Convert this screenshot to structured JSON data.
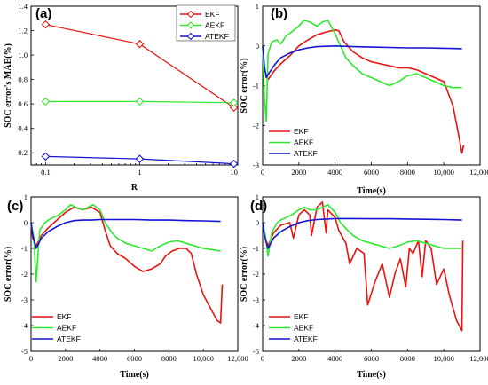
{
  "chart_data": [
    {
      "panel_label": "(a)",
      "type": "line",
      "xlabel": "R",
      "ylabel": "SOC error's MAE(%)",
      "xscale": "log",
      "xlim": [
        0.07,
        11
      ],
      "ylim": [
        0.1,
        1.4
      ],
      "xticks": [
        0.1,
        1,
        10
      ],
      "xtick_labels": [
        "0.1",
        "1",
        "10"
      ],
      "yticks": [
        0.2,
        0.4,
        0.6,
        0.8,
        1.0,
        1.2,
        1.4
      ],
      "ytick_labels": [
        "0.2",
        "0.4",
        "0.6",
        "0.8",
        "1.0",
        "1.2",
        "1.4"
      ],
      "legend_position": "top-right",
      "x": [
        0.1,
        1,
        10
      ],
      "series": [
        {
          "name": "EKF",
          "color": "#e8140f",
          "marker": "diamond",
          "values": [
            1.25,
            1.09,
            0.57
          ]
        },
        {
          "name": "AEKF",
          "color": "#2ee82e",
          "marker": "diamond",
          "values": [
            0.62,
            0.62,
            0.61
          ]
        },
        {
          "name": "ATEKF",
          "color": "#1414d2",
          "marker": "diamond",
          "values": [
            0.17,
            0.15,
            0.11
          ]
        }
      ]
    },
    {
      "panel_label": "(b)",
      "type": "line",
      "xlabel": "Time(s)",
      "ylabel": "SOC error(%)",
      "xlim": [
        0,
        12000
      ],
      "ylim": [
        -3,
        1
      ],
      "xticks": [
        0,
        2000,
        4000,
        6000,
        8000,
        10000,
        12000
      ],
      "xtick_labels": [
        "0",
        "2000",
        "4000",
        "6000",
        "8000",
        "10,000",
        "12,000"
      ],
      "yticks": [
        -3,
        -2,
        -1,
        0,
        1
      ],
      "ytick_labels": [
        "-3",
        "-2",
        "-1",
        "0",
        "1"
      ],
      "legend_position": "bottom-left",
      "series": [
        {
          "name": "EKF",
          "color": "#e8140f",
          "x": [
            0,
            100,
            300,
            600,
            1000,
            1500,
            2000,
            2500,
            3000,
            3500,
            4000,
            4200,
            4500,
            5000,
            5500,
            6000,
            6500,
            7000,
            7500,
            8000,
            8500,
            9000,
            9500,
            10000,
            10500,
            10800,
            11000,
            11100
          ],
          "values": [
            0,
            -0.6,
            -0.85,
            -0.65,
            -0.45,
            -0.25,
            0.0,
            0.15,
            0.28,
            0.35,
            0.4,
            0.38,
            0.1,
            -0.15,
            -0.3,
            -0.4,
            -0.45,
            -0.5,
            -0.55,
            -0.55,
            -0.6,
            -0.7,
            -0.8,
            -0.9,
            -1.5,
            -2.2,
            -2.7,
            -2.5
          ]
        },
        {
          "name": "AEKF",
          "color": "#2ee82e",
          "x": [
            0,
            100,
            200,
            300,
            500,
            800,
            1000,
            1300,
            1600,
            2000,
            2300,
            2600,
            3000,
            3300,
            3600,
            4000,
            4300,
            4600,
            5000,
            5500,
            6000,
            6500,
            7000,
            7500,
            8000,
            8500,
            9000,
            9500,
            10000,
            10500,
            11000
          ],
          "values": [
            0,
            -1.3,
            -1.9,
            -0.2,
            0.1,
            0.15,
            0.05,
            0.25,
            0.35,
            0.5,
            0.65,
            0.6,
            0.5,
            0.6,
            0.65,
            0.3,
            0.0,
            -0.3,
            -0.5,
            -0.7,
            -0.8,
            -0.9,
            -1.0,
            -0.9,
            -0.75,
            -0.7,
            -0.8,
            -0.9,
            -1.0,
            -1.05,
            -1.05
          ]
        },
        {
          "name": "ATEKF",
          "color": "#1414d2",
          "x": [
            0,
            100,
            200,
            400,
            700,
            1000,
            1500,
            2000,
            2500,
            3000,
            3500,
            4000,
            5000,
            6000,
            7000,
            8000,
            9000,
            10000,
            11000
          ],
          "values": [
            0,
            -0.5,
            -0.8,
            -0.65,
            -0.45,
            -0.3,
            -0.18,
            -0.1,
            -0.05,
            -0.02,
            -0.01,
            0.0,
            -0.02,
            -0.03,
            -0.04,
            -0.05,
            -0.05,
            -0.06,
            -0.07
          ]
        }
      ]
    },
    {
      "panel_label": "(c)",
      "type": "line",
      "xlabel": "Time(s)",
      "ylabel": "SOC error(%)",
      "xlim": [
        0,
        12000
      ],
      "ylim": [
        -5,
        1
      ],
      "xticks": [
        0,
        2000,
        4000,
        6000,
        8000,
        10000,
        12000
      ],
      "xtick_labels": [
        "0",
        "2000",
        "4000",
        "6000",
        "8000",
        "10,000",
        "12,000"
      ],
      "yticks": [
        -5,
        -4,
        -3,
        -2,
        -1,
        0,
        1
      ],
      "ytick_labels": [
        "-5",
        "-4",
        "-3",
        "-2",
        "-1",
        "0",
        "1"
      ],
      "legend_position": "bottom-left",
      "series": [
        {
          "name": "EKF",
          "color": "#e8140f",
          "x": [
            0,
            100,
            300,
            600,
            1000,
            1500,
            2000,
            2500,
            3000,
            3500,
            4000,
            4300,
            4600,
            5000,
            5500,
            6000,
            6500,
            7000,
            7500,
            7800,
            8200,
            8600,
            9000,
            9300,
            9600,
            10000,
            10400,
            10800,
            11000,
            11100
          ],
          "values": [
            0,
            -0.6,
            -0.9,
            -0.5,
            -0.2,
            0.1,
            0.4,
            0.6,
            0.5,
            0.6,
            0.4,
            -0.3,
            -0.9,
            -1.2,
            -1.4,
            -1.7,
            -1.9,
            -1.8,
            -1.6,
            -1.3,
            -1.1,
            -1.0,
            -1.0,
            -1.2,
            -2.0,
            -2.8,
            -3.3,
            -3.8,
            -3.9,
            -2.4
          ]
        },
        {
          "name": "AEKF",
          "color": "#2ee82e",
          "x": [
            0,
            150,
            300,
            500,
            800,
            1000,
            1300,
            1600,
            2000,
            2300,
            2600,
            3000,
            3300,
            3600,
            4000,
            4300,
            4700,
            5000,
            5500,
            6000,
            6500,
            7000,
            7500,
            8000,
            8500,
            9000,
            9500,
            10000,
            10500,
            11000
          ],
          "values": [
            0,
            -0.5,
            -2.3,
            -0.3,
            0.0,
            0.1,
            0.2,
            0.3,
            0.5,
            0.7,
            0.6,
            0.5,
            0.6,
            0.7,
            0.5,
            0.0,
            -0.4,
            -0.6,
            -0.8,
            -0.9,
            -1.0,
            -1.1,
            -0.9,
            -0.75,
            -0.7,
            -0.8,
            -0.9,
            -1.0,
            -1.05,
            -1.1
          ]
        },
        {
          "name": "ATEKF",
          "color": "#1414d2",
          "x": [
            0,
            100,
            300,
            600,
            1000,
            1500,
            2000,
            2500,
            3000,
            3500,
            4000,
            5000,
            6000,
            7000,
            8000,
            9000,
            10000,
            11000
          ],
          "values": [
            0,
            -0.5,
            -1.0,
            -0.6,
            -0.35,
            -0.15,
            0.0,
            0.08,
            0.1,
            0.1,
            0.12,
            0.12,
            0.12,
            0.1,
            0.1,
            0.08,
            0.07,
            0.05
          ]
        }
      ]
    },
    {
      "panel_label": "(d)",
      "type": "line",
      "xlabel": "Time(s)",
      "ylabel": "SOC error(%)",
      "xlim": [
        0,
        12000
      ],
      "ylim": [
        -5,
        1
      ],
      "xticks": [
        0,
        2000,
        4000,
        6000,
        8000,
        10000,
        12000
      ],
      "xtick_labels": [
        "0",
        "2000",
        "4000",
        "6000",
        "8000",
        "10,000",
        "12,000"
      ],
      "yticks": [
        -5,
        -4,
        -3,
        -2,
        -1,
        0,
        1
      ],
      "ytick_labels": [
        "-5",
        "-4",
        "-3",
        "-2",
        "-1",
        "0",
        "1"
      ],
      "legend_position": "bottom-left",
      "series": [
        {
          "name": "EKF",
          "color": "#e8140f",
          "x": [
            0,
            100,
            300,
            600,
            1000,
            1500,
            1700,
            2000,
            2300,
            2600,
            2700,
            3000,
            3300,
            3500,
            3600,
            4000,
            4200,
            4600,
            4800,
            5200,
            5600,
            5800,
            6200,
            6600,
            7000,
            7300,
            7600,
            7900,
            8100,
            8300,
            8600,
            8800,
            9000,
            9300,
            9600,
            10000,
            10300,
            10700,
            11000,
            11050
          ],
          "values": [
            0,
            -0.5,
            -0.9,
            -0.4,
            -0.1,
            0.0,
            -0.6,
            0.3,
            0.5,
            0.3,
            -0.5,
            0.6,
            0.8,
            -0.4,
            0.5,
            0.2,
            -0.3,
            -0.8,
            -1.6,
            -1.0,
            -1.2,
            -3.2,
            -2.3,
            -1.6,
            -2.9,
            -2.0,
            -1.4,
            -2.5,
            -1.0,
            -1.2,
            -0.7,
            -2.1,
            -0.7,
            -1.0,
            -2.4,
            -1.8,
            -2.8,
            -3.8,
            -4.2,
            -0.7
          ]
        },
        {
          "name": "AEKF",
          "color": "#2ee82e",
          "x": [
            0,
            150,
            300,
            500,
            800,
            1000,
            1300,
            1600,
            2000,
            2300,
            2600,
            3000,
            3300,
            3600,
            4000,
            4300,
            4700,
            5000,
            5500,
            6000,
            6500,
            7000,
            7500,
            8000,
            8500,
            9000,
            9500,
            10000,
            10500,
            11000
          ],
          "values": [
            0,
            -0.5,
            -1.3,
            -0.4,
            0.0,
            0.1,
            0.2,
            0.3,
            0.5,
            0.6,
            0.5,
            0.5,
            0.6,
            0.7,
            0.4,
            0.0,
            -0.3,
            -0.5,
            -0.7,
            -0.8,
            -0.9,
            -1.0,
            -0.9,
            -0.75,
            -0.7,
            -0.8,
            -0.9,
            -1.0,
            -1.0,
            -1.0
          ]
        },
        {
          "name": "ATEKF",
          "color": "#1414d2",
          "x": [
            0,
            100,
            300,
            600,
            1000,
            1500,
            2000,
            2500,
            3000,
            3500,
            4000,
            5000,
            6000,
            7000,
            8000,
            9000,
            10000,
            11000
          ],
          "values": [
            0,
            -0.5,
            -1.0,
            -0.6,
            -0.35,
            -0.15,
            0.0,
            0.08,
            0.12,
            0.14,
            0.16,
            0.16,
            0.15,
            0.15,
            0.14,
            0.13,
            0.12,
            0.1
          ]
        }
      ]
    }
  ]
}
